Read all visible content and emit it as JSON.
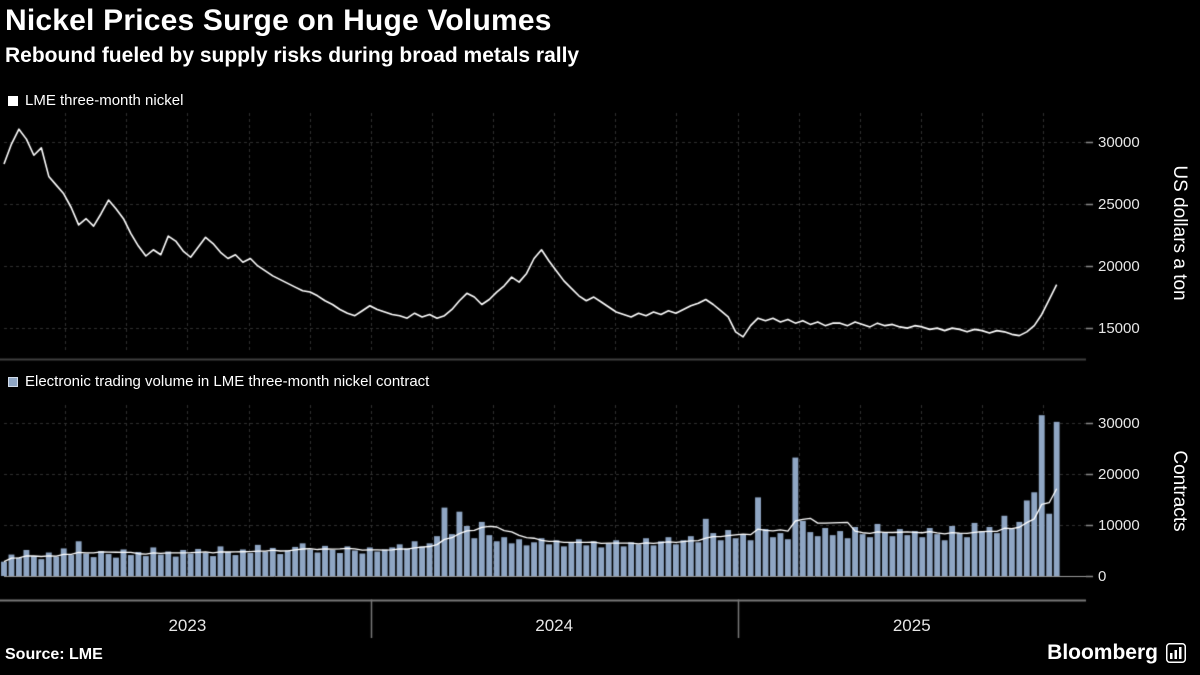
{
  "header": {
    "title": "Nickel Prices Surge on Huge Volumes",
    "subtitle": "Rebound fueled by supply risks during broad metals rally"
  },
  "footer": {
    "source": "Source: LME",
    "brand": "Bloomberg"
  },
  "colors": {
    "background": "#000000",
    "text": "#ffffff",
    "grid": "#2f2f2f",
    "axis": "#8a8a8a",
    "divider": "#3f3f3f",
    "price_line": "#ffffff",
    "volume_bar": "#8fa6c4",
    "volume_avg_line": "#ffffff"
  },
  "xaxis": {
    "years": [
      "2023",
      "2024",
      "2025"
    ],
    "domain": [
      2023.0,
      2025.95
    ],
    "grid_start_month": 2,
    "grid_interval_months": 2
  },
  "chart_data": [
    {
      "type": "line",
      "name": "nickel-price",
      "legend": "LME three-month nickel",
      "ylabel": "US dollars a ton",
      "yticks": [
        15000,
        20000,
        25000,
        30000
      ],
      "ylim": [
        13000,
        32300
      ],
      "x_range": [
        2023.0,
        2025.87
      ],
      "frequency": "weekly",
      "values": [
        28200,
        29800,
        31000,
        30200,
        28900,
        29500,
        27200,
        26500,
        25800,
        24700,
        23300,
        23800,
        23200,
        24200,
        25300,
        24600,
        23800,
        22600,
        21600,
        20800,
        21300,
        20900,
        22400,
        22000,
        21200,
        20700,
        21500,
        22300,
        21800,
        21100,
        20600,
        20900,
        20300,
        20600,
        20000,
        19600,
        19200,
        18900,
        18600,
        18300,
        18000,
        17900,
        17600,
        17200,
        16900,
        16500,
        16200,
        16000,
        16400,
        16800,
        16500,
        16300,
        16100,
        16000,
        15800,
        16200,
        15900,
        16100,
        15800,
        16000,
        16500,
        17200,
        17800,
        17500,
        16900,
        17300,
        17900,
        18400,
        19100,
        18700,
        19400,
        20600,
        21300,
        20400,
        19600,
        18800,
        18200,
        17600,
        17200,
        17500,
        17100,
        16700,
        16300,
        16100,
        15900,
        16200,
        16000,
        16300,
        16100,
        16400,
        16200,
        16500,
        16800,
        17000,
        17300,
        16900,
        16400,
        15900,
        14700,
        14300,
        15200,
        15800,
        15600,
        15800,
        15500,
        15700,
        15400,
        15600,
        15300,
        15500,
        15200,
        15400,
        15400,
        15200,
        15500,
        15300,
        15100,
        15400,
        15200,
        15300,
        15100,
        15000,
        15200,
        15100,
        14900,
        15000,
        14800,
        15000,
        14900,
        14700,
        14900,
        14800,
        14600,
        14800,
        14700,
        14500,
        14400,
        14700,
        15200,
        16100,
        17300,
        18500
      ]
    },
    {
      "type": "bar",
      "name": "trading-volume",
      "legend": "Electronic trading volume in LME three-month nickel contract",
      "ylabel": "Contracts",
      "yticks": [
        0,
        10000,
        20000,
        30000
      ],
      "ylim": [
        0,
        33500
      ],
      "x_range": [
        2023.0,
        2025.87
      ],
      "frequency": "weekly",
      "moving_average_line": true,
      "values": [
        2800,
        4200,
        3600,
        5100,
        3900,
        3300,
        4600,
        3800,
        5400,
        4100,
        6800,
        4400,
        3700,
        4900,
        4300,
        3600,
        5200,
        4100,
        4700,
        3900,
        5600,
        4200,
        4800,
        3800,
        5100,
        4400,
        5300,
        4600,
        3900,
        5800,
        4700,
        4100,
        5200,
        4500,
        6100,
        4800,
        5500,
        4300,
        5000,
        5700,
        6400,
        5200,
        4600,
        5900,
        5100,
        4500,
        5800,
        5000,
        4400,
        5600,
        4800,
        5200,
        5600,
        6200,
        5400,
        6800,
        5800,
        6400,
        7800,
        13400,
        8200,
        12600,
        9800,
        7400,
        10600,
        8000,
        6800,
        7600,
        6400,
        7200,
        6000,
        6600,
        7400,
        6200,
        7000,
        5800,
        6600,
        7200,
        6000,
        6800,
        5600,
        6400,
        7000,
        5800,
        6600,
        6200,
        7400,
        6000,
        6800,
        7600,
        6200,
        7000,
        7800,
        6600,
        11200,
        8400,
        7000,
        9000,
        7400,
        8200,
        7000,
        15400,
        9200,
        7600,
        8400,
        7200,
        23200,
        10800,
        8600,
        7800,
        9400,
        8000,
        8800,
        7400,
        9600,
        8200,
        7600,
        10200,
        8600,
        7800,
        9200,
        8000,
        8800,
        7600,
        9400,
        8200,
        7000,
        9800,
        8400,
        7600,
        10400,
        8800,
        9600,
        8400,
        11800,
        9200,
        10600,
        14800,
        16400,
        31500,
        12200,
        30200
      ]
    }
  ]
}
